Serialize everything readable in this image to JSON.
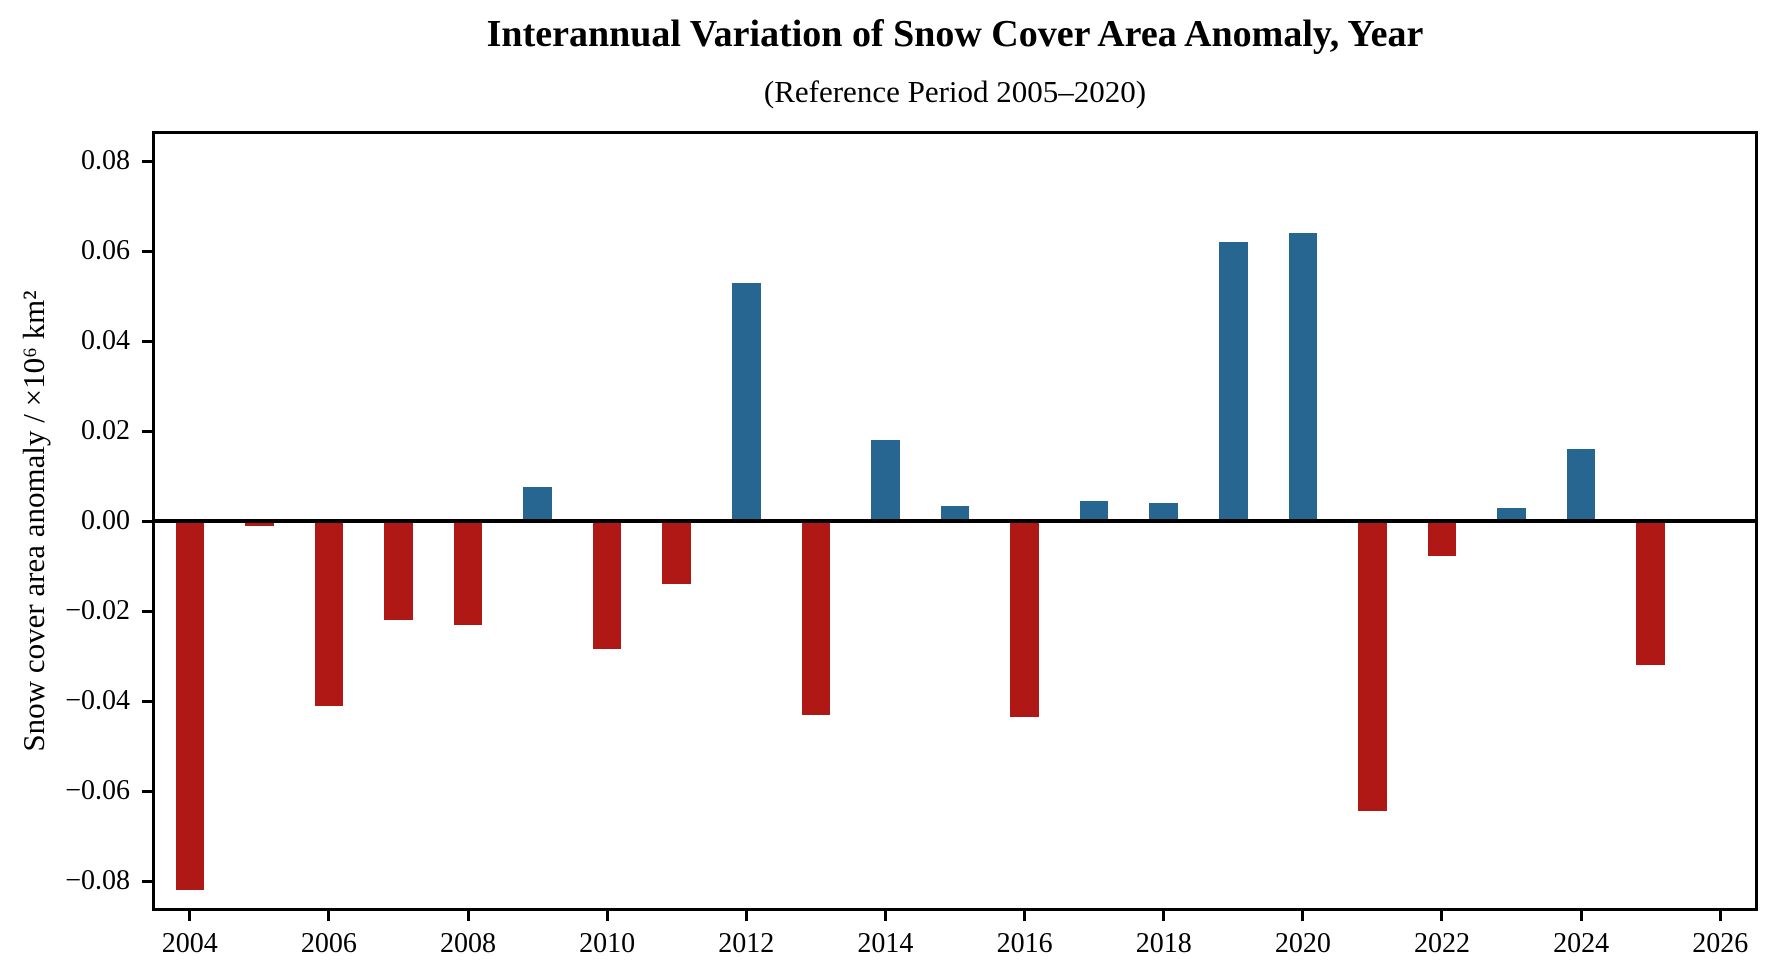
{
  "header": {
    "title": "Interannual Variation of Snow Cover Area Anomaly, Year",
    "subtitle": "(Reference Period 2005–2020)"
  },
  "chart_data": {
    "type": "bar",
    "title": "Interannual Variation of Snow Cover Area Anomaly, Year",
    "subtitle": "(Reference Period 2005–2020)",
    "xlabel": "",
    "ylabel": "Snow cover area anomaly / ×10⁶ km²",
    "x": [
      2004,
      2005,
      2006,
      2007,
      2008,
      2009,
      2010,
      2011,
      2012,
      2013,
      2014,
      2015,
      2016,
      2017,
      2018,
      2019,
      2020,
      2021,
      2022,
      2023,
      2024,
      2025
    ],
    "values": [
      -0.082,
      -0.001,
      -0.041,
      -0.022,
      -0.023,
      0.0075,
      -0.0285,
      -0.014,
      0.053,
      -0.043,
      0.018,
      0.0033,
      -0.0435,
      0.0045,
      0.004,
      0.062,
      0.064,
      -0.0645,
      -0.0077,
      0.0028,
      0.016,
      -0.032
    ],
    "xlim": [
      2003.5,
      2026.5
    ],
    "ylim": [
      -0.086,
      0.086
    ],
    "x_ticks": [
      2004,
      2006,
      2008,
      2010,
      2012,
      2014,
      2016,
      2018,
      2020,
      2022,
      2024,
      2026
    ],
    "y_ticks": [
      0.08,
      0.06,
      0.04,
      0.02,
      0.0,
      -0.02,
      -0.04,
      -0.06,
      -0.08
    ],
    "y_tick_labels": [
      "0.08",
      "0.06",
      "0.04",
      "0.02",
      "0.00",
      "−0.02",
      "−0.04",
      "−0.06",
      "−0.08"
    ],
    "bar_width_years": 0.41,
    "grid": false,
    "zero_line": true,
    "legend": null,
    "colors": {
      "positive_bar": "#276690",
      "negative_bar": "#B01815",
      "axis": "#000000",
      "background": "#ffffff"
    }
  }
}
